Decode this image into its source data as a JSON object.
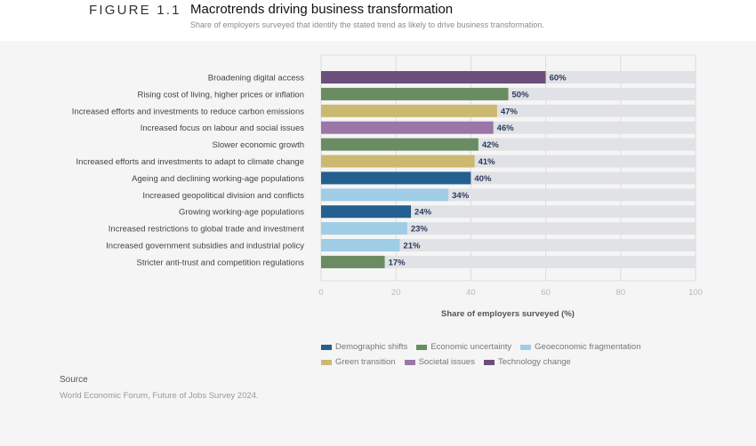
{
  "header": {
    "figure_label": "FIGURE 1.1",
    "title": "Macrotrends driving business transformation",
    "subtitle": "Share of employers surveyed that identify the stated trend as likely to drive business transformation."
  },
  "chart_data": {
    "type": "bar",
    "orientation": "horizontal",
    "title": "Macrotrends driving business transformation",
    "subtitle": "Share of employers surveyed that identify the stated trend as likely to drive business transformation.",
    "xlabel": "Share of employers surveyed (%)",
    "ylabel": "",
    "xlim": [
      0,
      100
    ],
    "xticks": [
      0,
      20,
      40,
      60,
      80,
      100
    ],
    "grid": true,
    "legend_position": "bottom",
    "value_suffix": "%",
    "categories": [
      "Broadening digital access",
      "Rising cost of living, higher prices or inflation",
      "Increased efforts and investments to reduce carbon emissions",
      "Increased focus on labour and social issues",
      "Slower economic growth",
      "Increased efforts and investments to adapt to climate change",
      "Ageing and declining working-age populations",
      "Increased geopolitical division and conflicts",
      "Growing working-age populations",
      "Increased restrictions to global trade and investment",
      "Increased government subsidies and industrial policy",
      "Stricter anti-trust and competition regulations"
    ],
    "values": [
      60,
      50,
      47,
      46,
      42,
      41,
      40,
      34,
      24,
      23,
      21,
      17
    ],
    "groups": [
      "Technology change",
      "Economic uncertainty",
      "Green transition",
      "Societal issues",
      "Economic uncertainty",
      "Green transition",
      "Demographic shifts",
      "Geoeconomic fragmentation",
      "Demographic shifts",
      "Geoeconomic fragmentation",
      "Geoeconomic fragmentation",
      "Economic uncertainty"
    ],
    "legend": [
      {
        "name": "Demographic shifts",
        "color": "#23608f"
      },
      {
        "name": "Economic uncertainty",
        "color": "#6a8c62"
      },
      {
        "name": "Geoeconomic fragmentation",
        "color": "#9fcde5"
      },
      {
        "name": "Green transition",
        "color": "#cab96e"
      },
      {
        "name": "Societal issues",
        "color": "#9b76a8"
      },
      {
        "name": "Technology change",
        "color": "#6c4f7b"
      }
    ],
    "track_color": "#e1e2e6"
  },
  "source": {
    "title": "Source",
    "text": "World Economic Forum, Future of Jobs Survey 2024."
  }
}
